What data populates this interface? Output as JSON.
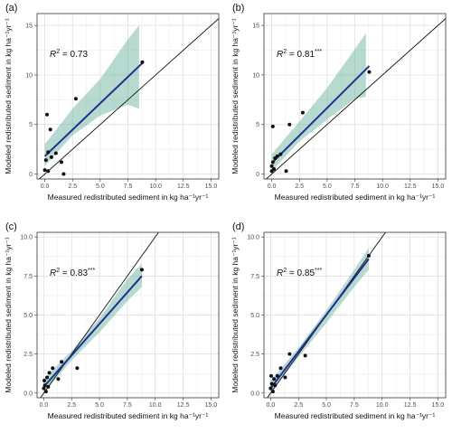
{
  "chart_data": [
    {
      "type": "scatter",
      "panel_label": "(a)",
      "r2_value": "0.73",
      "r2_stars": "",
      "xlabel": "Measured redistributed sediment in  kg  ha⁻¹yr⁻¹",
      "ylabel": "Modeled redistributed sediment in  kg  ha⁻¹yr⁻¹",
      "xlim": [
        -0.7,
        15.7
      ],
      "ylim": [
        -0.5,
        16.2
      ],
      "x_ticks": [
        "0.0",
        "2.5",
        "5.0",
        "7.5",
        "10.0",
        "12.5",
        "15.0"
      ],
      "y_ticks": [
        "0",
        "5",
        "10",
        "15"
      ],
      "y_tick_values": [
        0,
        5,
        10,
        15
      ],
      "points": [
        [
          0.0,
          0.4
        ],
        [
          0.1,
          1.4
        ],
        [
          0.2,
          6.0
        ],
        [
          0.3,
          0.3
        ],
        [
          0.3,
          2.2
        ],
        [
          0.5,
          4.5
        ],
        [
          0.6,
          1.7
        ],
        [
          1.0,
          2.1
        ],
        [
          1.5,
          1.2
        ],
        [
          1.7,
          0.0
        ],
        [
          2.8,
          7.6
        ],
        [
          8.8,
          11.3
        ]
      ],
      "fit_line": {
        "x0": 0.0,
        "x1": 8.8,
        "y0": 1.8,
        "y1": 11.2
      },
      "ci_band": [
        [
          0.0,
          0.8,
          3.0
        ],
        [
          2.5,
          3.9,
          6.6
        ],
        [
          5.0,
          5.9,
          9.6
        ],
        [
          7.5,
          7.0,
          13.6
        ],
        [
          8.5,
          6.6,
          15.0
        ]
      ],
      "colors": {
        "points": "#111111",
        "fit": "#1f2f8f",
        "band": "#5fae97",
        "identity": "#111111"
      }
    },
    {
      "type": "scatter",
      "panel_label": "(b)",
      "r2_value": "0.81",
      "r2_stars": "***",
      "xlabel": "Measured redistributed sediment in  kg  ha⁻¹yr⁻¹",
      "ylabel": "Modeled redistributed sediment in  kg  ha⁻¹yr⁻¹",
      "xlim": [
        -0.7,
        15.7
      ],
      "ylim": [
        -0.5,
        16.2
      ],
      "x_ticks": [
        "0.0",
        "2.5",
        "5.0",
        "7.5",
        "10.0",
        "12.5",
        "15.0"
      ],
      "y_ticks": [
        "0",
        "5",
        "10",
        "15"
      ],
      "y_tick_values": [
        0,
        5,
        10,
        15
      ],
      "points": [
        [
          0.0,
          0.3
        ],
        [
          0.0,
          0.8
        ],
        [
          0.1,
          1.2
        ],
        [
          0.1,
          4.8
        ],
        [
          0.2,
          0.5
        ],
        [
          0.3,
          1.6
        ],
        [
          0.5,
          1.8
        ],
        [
          0.8,
          2.0
        ],
        [
          1.3,
          0.3
        ],
        [
          1.6,
          5.0
        ],
        [
          2.8,
          6.2
        ],
        [
          8.8,
          10.3
        ]
      ],
      "fit_line": {
        "x0": 0.0,
        "x1": 8.8,
        "y0": 1.1,
        "y1": 10.9
      },
      "ci_band": [
        [
          0.0,
          0.3,
          2.0
        ],
        [
          2.5,
          3.3,
          5.3
        ],
        [
          5.0,
          5.5,
          8.7
        ],
        [
          7.5,
          7.6,
          12.6
        ],
        [
          8.5,
          7.8,
          14.2
        ]
      ],
      "colors": {
        "points": "#111111",
        "fit": "#1f2f8f",
        "band": "#5fae97",
        "identity": "#111111"
      }
    },
    {
      "type": "scatter",
      "panel_label": "(c)",
      "r2_value": "0.83",
      "r2_stars": "***",
      "xlabel": "Measured redistributed sediment in  kg  ha⁻¹yr⁻¹",
      "ylabel": "Modeled redistributed sediment in  kg  ha⁻¹yr⁻¹",
      "xlim": [
        -0.6,
        15.7
      ],
      "ylim": [
        -0.3,
        10.3
      ],
      "x_ticks": [
        "0.0",
        "2.5",
        "5.0",
        "7.5",
        "10.0",
        "12.5",
        "15.0"
      ],
      "y_ticks": [
        "0.0",
        "2.5",
        "5.0",
        "7.5",
        "10.0"
      ],
      "y_tick_values": [
        0,
        2.5,
        5,
        7.5,
        10
      ],
      "points": [
        [
          0.0,
          0.3
        ],
        [
          0.05,
          0.8
        ],
        [
          0.1,
          0.5
        ],
        [
          0.2,
          0.1
        ],
        [
          0.3,
          1.0
        ],
        [
          0.4,
          0.4
        ],
        [
          0.5,
          1.3
        ],
        [
          0.8,
          1.6
        ],
        [
          1.3,
          0.9
        ],
        [
          1.6,
          2.0
        ],
        [
          3.0,
          1.6
        ],
        [
          8.8,
          7.9
        ]
      ],
      "fit_line": {
        "x0": 0.0,
        "x1": 8.8,
        "y0": 0.4,
        "y1": 7.5
      },
      "ci_band": [
        [
          0.0,
          0.0,
          0.9
        ],
        [
          2.5,
          2.1,
          2.7
        ],
        [
          5.0,
          3.9,
          4.8
        ],
        [
          7.5,
          5.9,
          7.3
        ],
        [
          8.8,
          6.8,
          8.3
        ]
      ],
      "colors": {
        "points": "#111111",
        "fit": "#1f2f8f",
        "band": "#5fae97",
        "identity": "#111111"
      }
    },
    {
      "type": "scatter",
      "panel_label": "(d)",
      "r2_value": "0.85",
      "r2_stars": "***",
      "xlabel": "Measured redistributed sediment in  kg  ha⁻¹yr⁻¹",
      "ylabel": "Modeled redistributed sediment in  kg  ha⁻¹yr⁻¹",
      "xlim": [
        -0.6,
        15.7
      ],
      "ylim": [
        -0.3,
        10.3
      ],
      "x_ticks": [
        "0.0",
        "2.5",
        "5.0",
        "7.5",
        "10.0",
        "12.5",
        "15.0"
      ],
      "y_ticks": [
        "0.0",
        "2.5",
        "5.0",
        "7.5",
        "10.0"
      ],
      "y_tick_values": [
        0,
        2.5,
        5,
        7.5,
        10
      ],
      "points": [
        [
          0.0,
          0.3
        ],
        [
          0.05,
          1.1
        ],
        [
          0.1,
          0.6
        ],
        [
          0.2,
          0.1
        ],
        [
          0.3,
          0.9
        ],
        [
          0.4,
          0.5
        ],
        [
          0.6,
          1.1
        ],
        [
          0.9,
          1.6
        ],
        [
          1.3,
          1.0
        ],
        [
          1.7,
          2.5
        ],
        [
          3.1,
          2.4
        ],
        [
          8.8,
          8.8
        ]
      ],
      "fit_line": {
        "x0": 0.0,
        "x1": 8.8,
        "y0": 0.3,
        "y1": 8.6
      },
      "ci_band": [
        [
          0.0,
          0.0,
          0.8
        ],
        [
          2.5,
          2.3,
          2.9
        ],
        [
          5.0,
          4.5,
          5.3
        ],
        [
          7.5,
          6.8,
          7.9
        ],
        [
          8.8,
          7.9,
          9.3
        ]
      ],
      "colors": {
        "points": "#111111",
        "fit": "#1f2f8f",
        "band": "#5fae97",
        "identity": "#111111"
      }
    }
  ]
}
